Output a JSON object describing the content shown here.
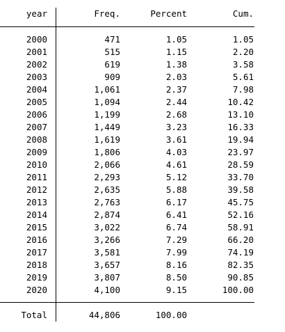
{
  "table": {
    "headers": {
      "year": "year",
      "freq": "Freq.",
      "percent": "Percent",
      "cum": "Cum."
    },
    "rows": [
      {
        "year": "2000",
        "freq": "471",
        "percent": "1.05",
        "cum": "1.05"
      },
      {
        "year": "2001",
        "freq": "515",
        "percent": "1.15",
        "cum": "2.20"
      },
      {
        "year": "2002",
        "freq": "619",
        "percent": "1.38",
        "cum": "3.58"
      },
      {
        "year": "2003",
        "freq": "909",
        "percent": "2.03",
        "cum": "5.61"
      },
      {
        "year": "2004",
        "freq": "1,061",
        "percent": "2.37",
        "cum": "7.98"
      },
      {
        "year": "2005",
        "freq": "1,094",
        "percent": "2.44",
        "cum": "10.42"
      },
      {
        "year": "2006",
        "freq": "1,199",
        "percent": "2.68",
        "cum": "13.10"
      },
      {
        "year": "2007",
        "freq": "1,449",
        "percent": "3.23",
        "cum": "16.33"
      },
      {
        "year": "2008",
        "freq": "1,619",
        "percent": "3.61",
        "cum": "19.94"
      },
      {
        "year": "2009",
        "freq": "1,806",
        "percent": "4.03",
        "cum": "23.97"
      },
      {
        "year": "2010",
        "freq": "2,066",
        "percent": "4.61",
        "cum": "28.59"
      },
      {
        "year": "2011",
        "freq": "2,293",
        "percent": "5.12",
        "cum": "33.70"
      },
      {
        "year": "2012",
        "freq": "2,635",
        "percent": "5.88",
        "cum": "39.58"
      },
      {
        "year": "2013",
        "freq": "2,763",
        "percent": "6.17",
        "cum": "45.75"
      },
      {
        "year": "2014",
        "freq": "2,874",
        "percent": "6.41",
        "cum": "52.16"
      },
      {
        "year": "2015",
        "freq": "3,022",
        "percent": "6.74",
        "cum": "58.91"
      },
      {
        "year": "2016",
        "freq": "3,266",
        "percent": "7.29",
        "cum": "66.20"
      },
      {
        "year": "2017",
        "freq": "3,581",
        "percent": "7.99",
        "cum": "74.19"
      },
      {
        "year": "2018",
        "freq": "3,657",
        "percent": "8.16",
        "cum": "82.35"
      },
      {
        "year": "2019",
        "freq": "3,807",
        "percent": "8.50",
        "cum": "90.85"
      },
      {
        "year": "2020",
        "freq": "4,100",
        "percent": "9.15",
        "cum": "100.00"
      }
    ],
    "total": {
      "label": "Total",
      "freq": "44,806",
      "percent": "100.00"
    }
  }
}
